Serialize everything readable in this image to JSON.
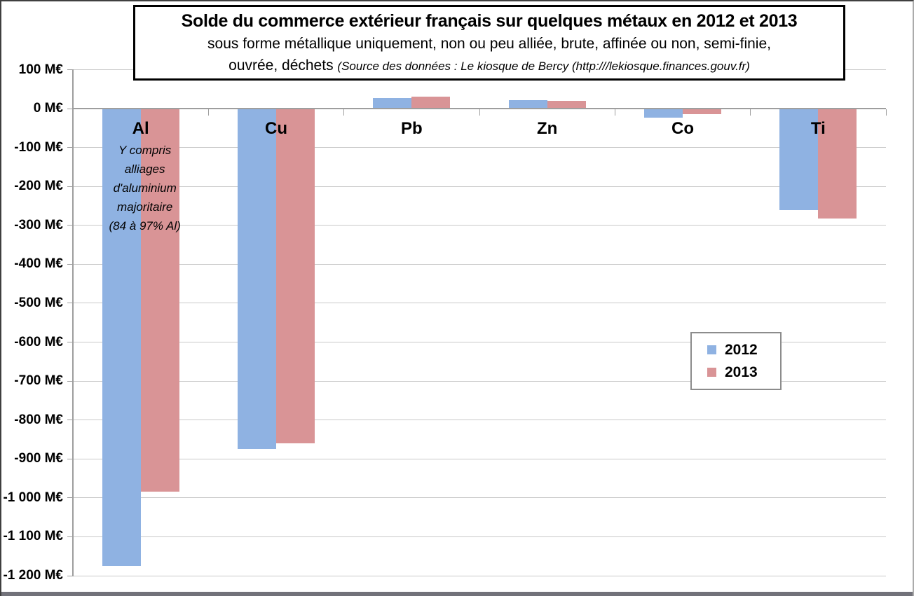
{
  "title_box": {
    "title": "Solde du commerce extérieur français sur quelques métaux en 2012 et 2013",
    "subtitle_line1": "sous forme métallique uniquement, non ou peu alliée, brute, affinée ou non, semi-finie,",
    "subtitle_line2": "ouvrée, déchets",
    "source": "(Source des données : Le kiosque de Bercy (http:///lekiosque.finances.gouv.fr)"
  },
  "legend": {
    "position": "middle-right",
    "items": [
      {
        "label": "2012",
        "color": "#8FB2E2"
      },
      {
        "label": "2013",
        "color": "#D99496"
      }
    ]
  },
  "annotation": {
    "category": "Al",
    "lines": [
      "Y compris",
      "alliages",
      "d'aluminium",
      "majoritaire",
      "(84 à 97% Al)"
    ]
  },
  "chart_data": {
    "type": "bar",
    "categories": [
      "Al",
      "Cu",
      "Pb",
      "Zn",
      "Co",
      "Ti"
    ],
    "series": [
      {
        "name": "2012",
        "color": "#8FB2E2",
        "values": [
          -1175,
          -875,
          27,
          22,
          -23,
          -260
        ]
      },
      {
        "name": "2013",
        "color": "#D99496",
        "values": [
          -985,
          -860,
          30,
          20,
          -15,
          -283
        ]
      }
    ],
    "unit": "M€",
    "ylim": [
      -1200,
      100
    ],
    "ytick_step": 100,
    "ytick_labels": [
      "100 M€",
      "0 M€",
      "-100 M€",
      "-200 M€",
      "-300 M€",
      "-400 M€",
      "-500 M€",
      "-600 M€",
      "-700 M€",
      "-800 M€",
      "-900 M€",
      "-1 000 M€",
      "-1 100 M€",
      "-1 200 M€"
    ],
    "grid": true,
    "legend_position": "right-middle"
  },
  "colors": {
    "gridline": "#C9C9C9",
    "axis": "#9E9E9E",
    "background": "#FFFFFF",
    "title_border": "#000000"
  }
}
